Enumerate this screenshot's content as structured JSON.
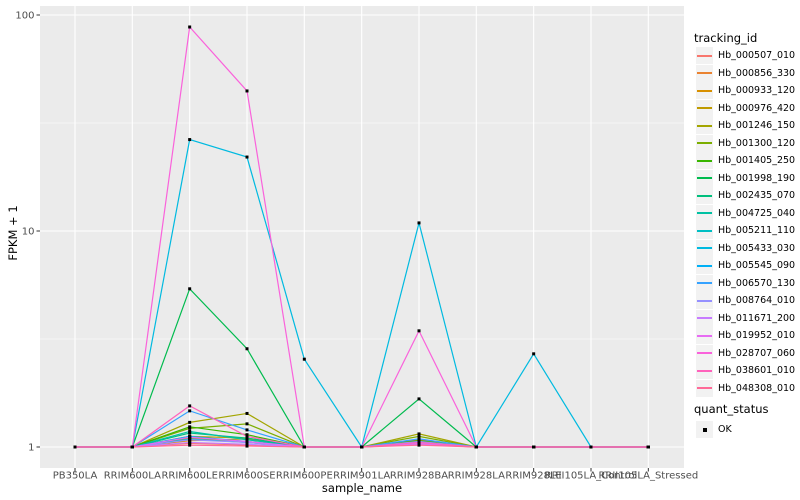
{
  "legend": {
    "tracking_title": "tracking_id",
    "quant_title": "quant_status",
    "quant_items": [
      {
        "label": "OK",
        "marker": "black-square"
      }
    ]
  },
  "chart_data": {
    "type": "line",
    "title": "",
    "xlabel": "sample_name",
    "ylabel": "FPKM + 1",
    "y_scale": "log10",
    "y_ticks": [
      1,
      10,
      100
    ],
    "y_tick_labels": [
      "1",
      "10",
      "100"
    ],
    "y_minor_ticks": [
      3.162,
      31.623
    ],
    "ylim": [
      0.8,
      110
    ],
    "grid": "on",
    "legend_position": "right",
    "panel_bg": "#EBEBEB",
    "grid_color": "#FFFFFF",
    "tick_text_color": "#4D4D4D",
    "point_marker": "square",
    "point_color": "#000000",
    "categories": [
      "PB350LA",
      "RRIM600LA",
      "RRIM600LE",
      "RRIM600SE",
      "RRIM600PE",
      "RRIM901LA",
      "RRIM928BA",
      "RRIM928LA",
      "RRIM928LE",
      "RRII105LA_Control",
      "RRII105LA_Stressed"
    ],
    "series": [
      {
        "name": "Hb_000507_010",
        "color": "#F8766D",
        "values": [
          1,
          1,
          1.04,
          1.02,
          1,
          1,
          1.03,
          1,
          1,
          1,
          1
        ]
      },
      {
        "name": "Hb_000856_330",
        "color": "#EA8331",
        "values": [
          1,
          1,
          1.1,
          1.06,
          1,
          1,
          1.08,
          1,
          1,
          1,
          1
        ]
      },
      {
        "name": "Hb_000933_120",
        "color": "#D89000",
        "values": [
          1,
          1,
          1.07,
          1.09,
          1,
          1,
          1.05,
          1,
          1,
          1,
          1
        ]
      },
      {
        "name": "Hb_000976_420",
        "color": "#C09B00",
        "values": [
          1,
          1,
          1.12,
          1.1,
          1,
          1,
          1.06,
          1,
          1,
          1,
          1
        ]
      },
      {
        "name": "Hb_001246_150",
        "color": "#A3A500",
        "values": [
          1,
          1,
          1.3,
          1.43,
          1,
          1,
          1.15,
          1,
          1,
          1,
          1
        ]
      },
      {
        "name": "Hb_001300_120",
        "color": "#7CAE00",
        "values": [
          1,
          1,
          1.22,
          1.28,
          1,
          1,
          1.12,
          1,
          1,
          1,
          1
        ]
      },
      {
        "name": "Hb_001405_250",
        "color": "#39B600",
        "values": [
          1,
          1,
          1.24,
          1.14,
          1,
          1,
          1.07,
          1,
          1,
          1,
          1
        ]
      },
      {
        "name": "Hb_001998_190",
        "color": "#00BB4E",
        "values": [
          1,
          1,
          5.4,
          2.85,
          1,
          1,
          1.67,
          1,
          1,
          1,
          1
        ]
      },
      {
        "name": "Hb_002435_070",
        "color": "#00BF7D",
        "values": [
          1,
          1,
          1.16,
          1.1,
          1,
          1,
          1.05,
          1,
          1,
          1,
          1
        ]
      },
      {
        "name": "Hb_004725_040",
        "color": "#00C1A3",
        "values": [
          1,
          1,
          1.18,
          1.08,
          1,
          1,
          1.04,
          1,
          1,
          1,
          1
        ]
      },
      {
        "name": "Hb_005211_110",
        "color": "#00BFC4",
        "values": [
          1,
          1,
          1.09,
          1.05,
          1,
          1,
          1.04,
          1,
          1,
          1,
          1
        ]
      },
      {
        "name": "Hb_005433_030",
        "color": "#00BAE0",
        "values": [
          1,
          1,
          26.5,
          22,
          2.55,
          1,
          10.9,
          1,
          2.7,
          1,
          1
        ]
      },
      {
        "name": "Hb_005545_090",
        "color": "#00B0F6",
        "values": [
          1,
          1,
          1.12,
          1.06,
          1,
          1,
          1.05,
          1,
          1,
          1,
          1
        ]
      },
      {
        "name": "Hb_006570_130",
        "color": "#35A2FF",
        "values": [
          1,
          1,
          1.47,
          1.2,
          1,
          1,
          1.09,
          1,
          1,
          1,
          1
        ]
      },
      {
        "name": "Hb_008764_010",
        "color": "#9590FF",
        "values": [
          1,
          1,
          1.08,
          1.05,
          1,
          1,
          1.06,
          1,
          1,
          1,
          1
        ]
      },
      {
        "name": "Hb_011671_200",
        "color": "#C77CFF",
        "values": [
          1,
          1,
          1.05,
          1.03,
          1,
          1,
          1.03,
          1,
          1,
          1,
          1
        ]
      },
      {
        "name": "Hb_019952_010",
        "color": "#E76BF3",
        "values": [
          1,
          1,
          1.11,
          1.06,
          1,
          1,
          1.04,
          1,
          1,
          1,
          1
        ]
      },
      {
        "name": "Hb_028707_060",
        "color": "#FA62DB",
        "values": [
          1,
          1,
          88,
          44.5,
          1,
          1,
          3.45,
          1,
          1,
          1,
          1
        ]
      },
      {
        "name": "Hb_038601_010",
        "color": "#FF62BC",
        "values": [
          1,
          1,
          1.55,
          1.12,
          1,
          1,
          1.05,
          1,
          1,
          1,
          1
        ]
      },
      {
        "name": "Hb_048308_010",
        "color": "#FF6A98",
        "values": [
          1,
          1,
          1.02,
          1.01,
          1,
          1,
          1.02,
          1,
          1,
          1,
          1
        ]
      }
    ]
  }
}
